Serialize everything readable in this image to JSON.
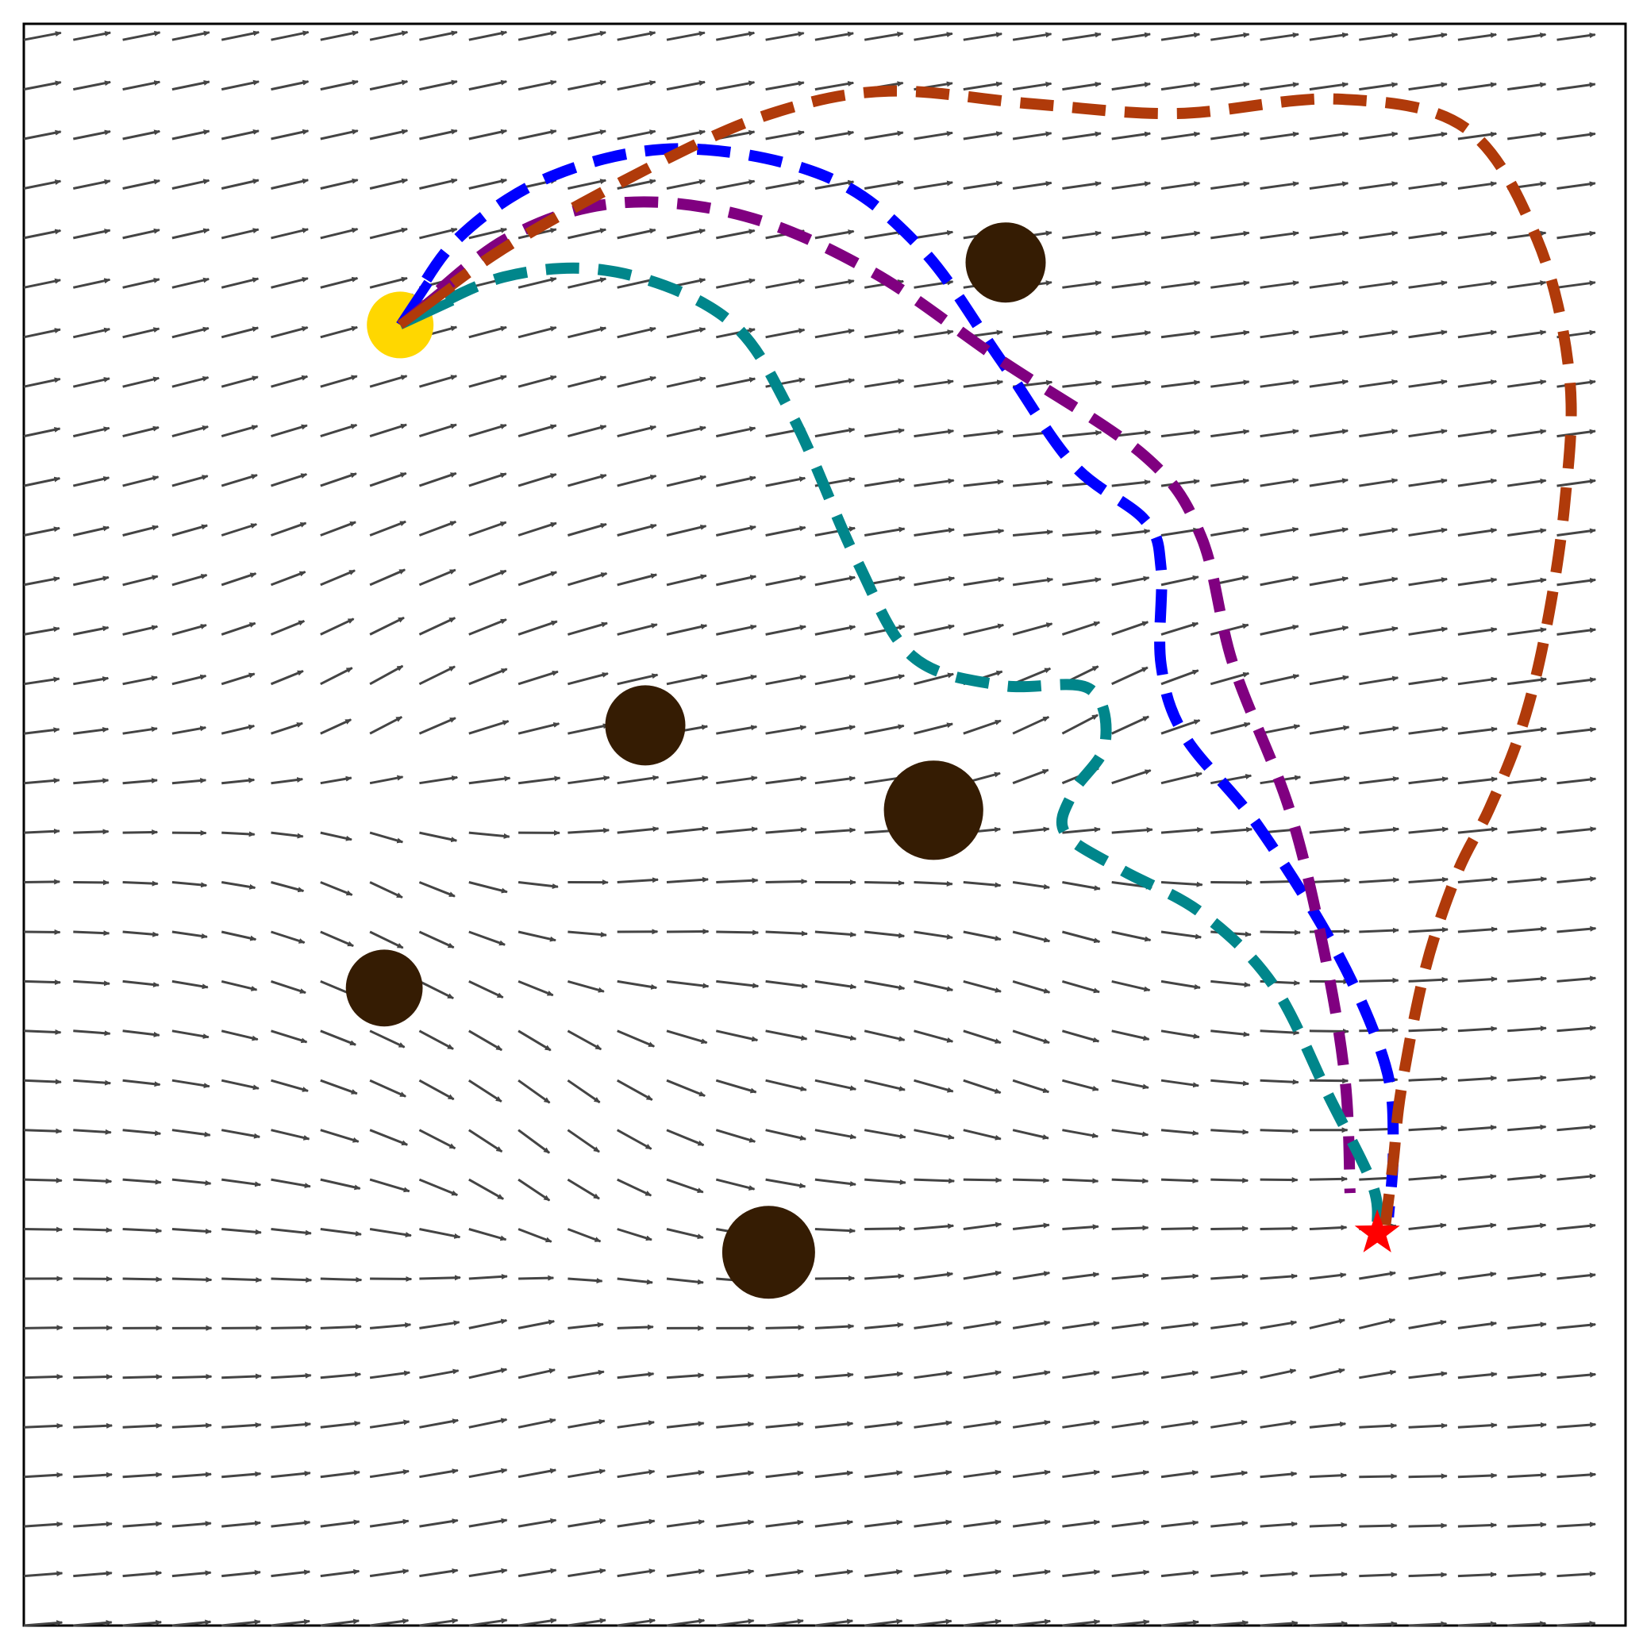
{
  "chart_data": {
    "type": "quiver",
    "title": "",
    "xlabel": "",
    "ylabel": "",
    "xlim": [
      0,
      1
    ],
    "ylim": [
      0,
      1
    ],
    "grid": false,
    "legend": null,
    "colors": {
      "arrows": "#444444",
      "frame": "#000000",
      "obstacles": "#351c03",
      "start": "#ffd700",
      "goal": "#ff0000"
    },
    "start": {
      "x": 0.235,
      "y": 0.812
    },
    "goal": {
      "x": 0.845,
      "y": 0.245
    },
    "obstacles": [
      {
        "x": 0.613,
        "y": 0.851,
        "r": 0.025
      },
      {
        "x": 0.388,
        "y": 0.562,
        "r": 0.025
      },
      {
        "x": 0.568,
        "y": 0.509,
        "r": 0.031
      },
      {
        "x": 0.225,
        "y": 0.398,
        "r": 0.024
      },
      {
        "x": 0.465,
        "y": 0.233,
        "r": 0.029
      }
    ],
    "field": {
      "nx": 33,
      "ny": 33,
      "x0": 0.0,
      "x1": 0.988,
      "y0": 0.0,
      "y1": 0.99,
      "base_direction": [
        1.0,
        0.12
      ],
      "sources": [
        {
          "x": 0.24,
          "y": 0.52,
          "strength": 1.0
        },
        {
          "x": 0.37,
          "y": 0.39,
          "strength": 0.7
        },
        {
          "x": 0.66,
          "y": 0.5,
          "strength": 0.8
        },
        {
          "x": 0.82,
          "y": 0.16,
          "strength": 0.7
        }
      ],
      "sinks": [
        {
          "x": 0.28,
          "y": 0.24,
          "strength": 0.9
        },
        {
          "x": 0.58,
          "y": 0.29,
          "strength": 0.6
        },
        {
          "x": 0.8,
          "y": 0.18,
          "strength": 0.6
        },
        {
          "x": 0.64,
          "y": 0.62,
          "strength": 0.5
        }
      ]
    },
    "series": [
      {
        "color": "#0000ff",
        "points": [
          [
            0.235,
            0.812
          ],
          [
            0.27,
            0.865
          ],
          [
            0.33,
            0.905
          ],
          [
            0.41,
            0.922
          ],
          [
            0.5,
            0.905
          ],
          [
            0.56,
            0.86
          ],
          [
            0.61,
            0.79
          ],
          [
            0.655,
            0.725
          ],
          [
            0.7,
            0.69
          ],
          [
            0.71,
            0.66
          ],
          [
            0.71,
            0.6
          ],
          [
            0.725,
            0.555
          ],
          [
            0.77,
            0.5
          ],
          [
            0.82,
            0.42
          ],
          [
            0.85,
            0.35
          ],
          [
            0.855,
            0.3
          ],
          [
            0.852,
            0.255
          ]
        ]
      },
      {
        "color": "#800080",
        "points": [
          [
            0.235,
            0.812
          ],
          [
            0.3,
            0.865
          ],
          [
            0.37,
            0.888
          ],
          [
            0.45,
            0.88
          ],
          [
            0.53,
            0.845
          ],
          [
            0.61,
            0.79
          ],
          [
            0.7,
            0.73
          ],
          [
            0.735,
            0.68
          ],
          [
            0.755,
            0.6
          ],
          [
            0.79,
            0.51
          ],
          [
            0.812,
            0.42
          ],
          [
            0.825,
            0.34
          ],
          [
            0.828,
            0.27
          ]
        ]
      },
      {
        "color": "#00868b",
        "points": [
          [
            0.235,
            0.812
          ],
          [
            0.3,
            0.842
          ],
          [
            0.37,
            0.845
          ],
          [
            0.44,
            0.815
          ],
          [
            0.48,
            0.755
          ],
          [
            0.52,
            0.665
          ],
          [
            0.555,
            0.605
          ],
          [
            0.61,
            0.587
          ],
          [
            0.665,
            0.585
          ],
          [
            0.675,
            0.55
          ],
          [
            0.655,
            0.52
          ],
          [
            0.65,
            0.495
          ],
          [
            0.685,
            0.472
          ],
          [
            0.735,
            0.445
          ],
          [
            0.78,
            0.4
          ],
          [
            0.815,
            0.33
          ],
          [
            0.842,
            0.275
          ],
          [
            0.845,
            0.248
          ]
        ]
      },
      {
        "color": "#b03a0a",
        "points": [
          [
            0.235,
            0.812
          ],
          [
            0.3,
            0.86
          ],
          [
            0.4,
            0.915
          ],
          [
            0.47,
            0.945
          ],
          [
            0.54,
            0.958
          ],
          [
            0.63,
            0.95
          ],
          [
            0.72,
            0.944
          ],
          [
            0.82,
            0.953
          ],
          [
            0.9,
            0.935
          ],
          [
            0.945,
            0.865
          ],
          [
            0.965,
            0.78
          ],
          [
            0.962,
            0.7
          ],
          [
            0.95,
            0.62
          ],
          [
            0.935,
            0.56
          ],
          [
            0.915,
            0.51
          ],
          [
            0.895,
            0.47
          ],
          [
            0.875,
            0.41
          ],
          [
            0.86,
            0.335
          ],
          [
            0.855,
            0.29
          ],
          [
            0.85,
            0.25
          ]
        ]
      }
    ]
  }
}
